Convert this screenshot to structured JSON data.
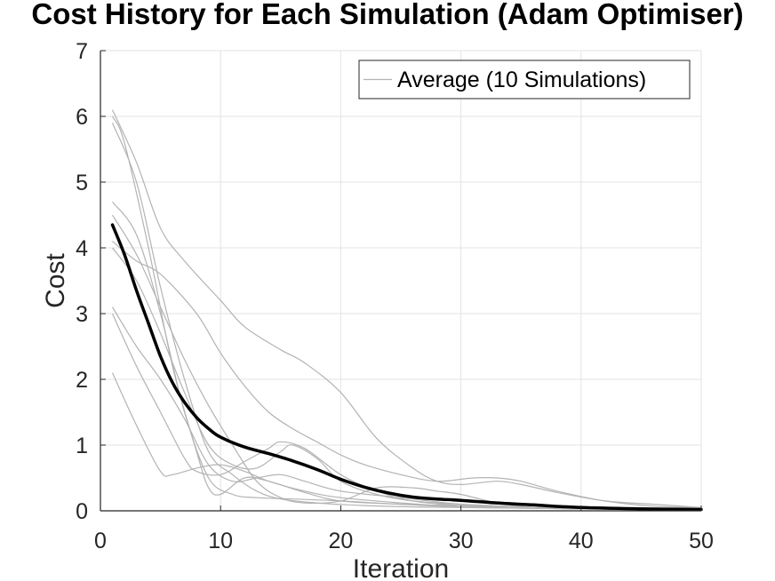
{
  "chart_data": {
    "type": "line",
    "title": "Cost History for Each Simulation (Adam Optimiser)",
    "xlabel": "Iteration",
    "ylabel": "Cost",
    "xlim": [
      0,
      50
    ],
    "ylim": [
      0,
      7
    ],
    "xticks": [
      0,
      10,
      20,
      30,
      40,
      50
    ],
    "yticks": [
      0,
      1,
      2,
      3,
      4,
      5,
      6,
      7
    ],
    "grid": true,
    "legend": {
      "position": "top-right",
      "entries": [
        "Average (10 Simulations)"
      ]
    },
    "colors": {
      "simulations": "#b3b3b3",
      "average": "#000000",
      "grid": "#e3e3e3",
      "axis": "#262626"
    },
    "series": [
      {
        "role": "simulation",
        "points": [
          [
            1,
            6.1
          ],
          [
            3,
            5.3
          ],
          [
            5,
            4.3
          ],
          [
            7,
            3.8
          ],
          [
            10,
            3.2
          ],
          [
            12,
            2.8
          ],
          [
            15,
            2.45
          ],
          [
            17,
            2.25
          ],
          [
            20,
            1.8
          ],
          [
            23,
            1.1
          ],
          [
            26,
            0.65
          ],
          [
            28,
            0.45
          ],
          [
            30,
            0.4
          ],
          [
            33,
            0.45
          ],
          [
            35,
            0.4
          ],
          [
            38,
            0.28
          ],
          [
            42,
            0.15
          ],
          [
            46,
            0.1
          ],
          [
            50,
            0.05
          ]
        ]
      },
      {
        "role": "simulation",
        "points": [
          [
            1,
            5.9
          ],
          [
            3,
            5.0
          ],
          [
            5,
            3.4
          ],
          [
            7,
            2.0
          ],
          [
            9,
            0.9
          ],
          [
            11,
            0.55
          ],
          [
            13,
            0.3
          ],
          [
            15,
            0.18
          ],
          [
            18,
            0.12
          ],
          [
            22,
            0.08
          ],
          [
            26,
            0.06
          ],
          [
            30,
            0.05
          ],
          [
            35,
            0.04
          ],
          [
            40,
            0.03
          ],
          [
            50,
            0.02
          ]
        ]
      },
      {
        "role": "simulation",
        "points": [
          [
            1,
            4.7
          ],
          [
            3,
            4.2
          ],
          [
            5,
            3.0
          ],
          [
            7,
            1.5
          ],
          [
            9,
            0.5
          ],
          [
            11,
            0.25
          ],
          [
            13,
            0.2
          ],
          [
            16,
            0.18
          ],
          [
            20,
            0.15
          ],
          [
            25,
            0.1
          ],
          [
            30,
            0.08
          ],
          [
            35,
            0.06
          ],
          [
            40,
            0.04
          ],
          [
            50,
            0.02
          ]
        ]
      },
      {
        "role": "simulation",
        "points": [
          [
            1,
            4.1
          ],
          [
            3,
            3.8
          ],
          [
            5,
            3.6
          ],
          [
            8,
            3.0
          ],
          [
            10,
            2.4
          ],
          [
            12,
            1.9
          ],
          [
            14,
            1.5
          ],
          [
            16,
            1.25
          ],
          [
            18,
            1.05
          ],
          [
            20,
            0.85
          ],
          [
            22,
            0.7
          ],
          [
            25,
            0.55
          ],
          [
            28,
            0.45
          ],
          [
            31,
            0.5
          ],
          [
            33,
            0.5
          ],
          [
            35,
            0.45
          ],
          [
            38,
            0.3
          ],
          [
            42,
            0.15
          ],
          [
            46,
            0.07
          ],
          [
            50,
            0.05
          ]
        ]
      },
      {
        "role": "simulation",
        "points": [
          [
            1,
            4.0
          ],
          [
            3,
            3.5
          ],
          [
            5,
            2.7
          ],
          [
            7,
            1.8
          ],
          [
            9,
            1.0
          ],
          [
            11,
            0.7
          ],
          [
            13,
            0.65
          ],
          [
            15,
            0.9
          ],
          [
            16,
            1.0
          ],
          [
            18,
            0.8
          ],
          [
            20,
            0.45
          ],
          [
            23,
            0.25
          ],
          [
            26,
            0.15
          ],
          [
            30,
            0.1
          ],
          [
            35,
            0.06
          ],
          [
            40,
            0.03
          ],
          [
            50,
            0.02
          ]
        ]
      },
      {
        "role": "simulation",
        "points": [
          [
            1,
            3.1
          ],
          [
            3,
            2.5
          ],
          [
            5,
            2.0
          ],
          [
            7,
            1.4
          ],
          [
            9,
            0.7
          ],
          [
            11,
            0.45
          ],
          [
            13,
            0.5
          ],
          [
            15,
            0.55
          ],
          [
            17,
            0.45
          ],
          [
            20,
            0.3
          ],
          [
            25,
            0.2
          ],
          [
            30,
            0.1
          ],
          [
            35,
            0.05
          ],
          [
            40,
            0.03
          ],
          [
            50,
            0.02
          ]
        ]
      },
      {
        "role": "simulation",
        "points": [
          [
            1,
            3.0
          ],
          [
            3,
            2.2
          ],
          [
            5,
            1.5
          ],
          [
            7,
            0.8
          ],
          [
            8,
            0.6
          ],
          [
            10,
            0.55
          ],
          [
            12,
            0.75
          ],
          [
            14,
            0.95
          ],
          [
            15,
            1.05
          ],
          [
            17,
            0.95
          ],
          [
            20,
            0.55
          ],
          [
            23,
            0.3
          ],
          [
            26,
            0.15
          ],
          [
            30,
            0.08
          ],
          [
            35,
            0.05
          ],
          [
            40,
            0.03
          ],
          [
            50,
            0.02
          ]
        ]
      },
      {
        "role": "simulation",
        "points": [
          [
            1,
            2.1
          ],
          [
            3,
            1.3
          ],
          [
            5,
            0.6
          ],
          [
            6,
            0.55
          ],
          [
            8,
            0.65
          ],
          [
            10,
            0.7
          ],
          [
            12,
            0.6
          ],
          [
            14,
            0.45
          ],
          [
            17,
            0.3
          ],
          [
            20,
            0.2
          ],
          [
            25,
            0.12
          ],
          [
            30,
            0.06
          ],
          [
            35,
            0.04
          ],
          [
            40,
            0.03
          ],
          [
            50,
            0.02
          ]
        ]
      },
      {
        "role": "simulation",
        "points": [
          [
            1,
            6.0
          ],
          [
            2,
            5.6
          ],
          [
            4,
            4.0
          ],
          [
            6,
            2.2
          ],
          [
            8,
            0.9
          ],
          [
            9,
            0.35
          ],
          [
            10,
            0.25
          ],
          [
            12,
            0.5
          ],
          [
            14,
            0.45
          ],
          [
            17,
            0.28
          ],
          [
            20,
            0.15
          ],
          [
            25,
            0.1
          ],
          [
            30,
            0.06
          ],
          [
            40,
            0.03
          ],
          [
            50,
            0.02
          ]
        ]
      },
      {
        "role": "simulation",
        "points": [
          [
            1,
            4.5
          ],
          [
            3,
            3.9
          ],
          [
            5,
            3.1
          ],
          [
            7,
            2.3
          ],
          [
            9,
            1.6
          ],
          [
            11,
            1.0
          ],
          [
            13,
            0.45
          ],
          [
            15,
            0.2
          ],
          [
            17,
            0.12
          ],
          [
            20,
            0.15
          ],
          [
            23,
            0.35
          ],
          [
            26,
            0.35
          ],
          [
            28,
            0.3
          ],
          [
            30,
            0.25
          ],
          [
            33,
            0.12
          ],
          [
            36,
            0.05
          ],
          [
            40,
            0.03
          ],
          [
            50,
            0.02
          ]
        ]
      },
      {
        "role": "average",
        "name": "Average (10 Simulations)",
        "points": [
          [
            1,
            4.35
          ],
          [
            2,
            3.9
          ],
          [
            3,
            3.35
          ],
          [
            4,
            2.85
          ],
          [
            5,
            2.35
          ],
          [
            6,
            1.95
          ],
          [
            7,
            1.65
          ],
          [
            8,
            1.42
          ],
          [
            9,
            1.25
          ],
          [
            10,
            1.12
          ],
          [
            12,
            0.97
          ],
          [
            14,
            0.87
          ],
          [
            16,
            0.76
          ],
          [
            18,
            0.63
          ],
          [
            20,
            0.48
          ],
          [
            22,
            0.36
          ],
          [
            24,
            0.27
          ],
          [
            26,
            0.21
          ],
          [
            28,
            0.18
          ],
          [
            30,
            0.16
          ],
          [
            33,
            0.12
          ],
          [
            36,
            0.09
          ],
          [
            40,
            0.05
          ],
          [
            45,
            0.03
          ],
          [
            50,
            0.02
          ]
        ]
      }
    ]
  }
}
